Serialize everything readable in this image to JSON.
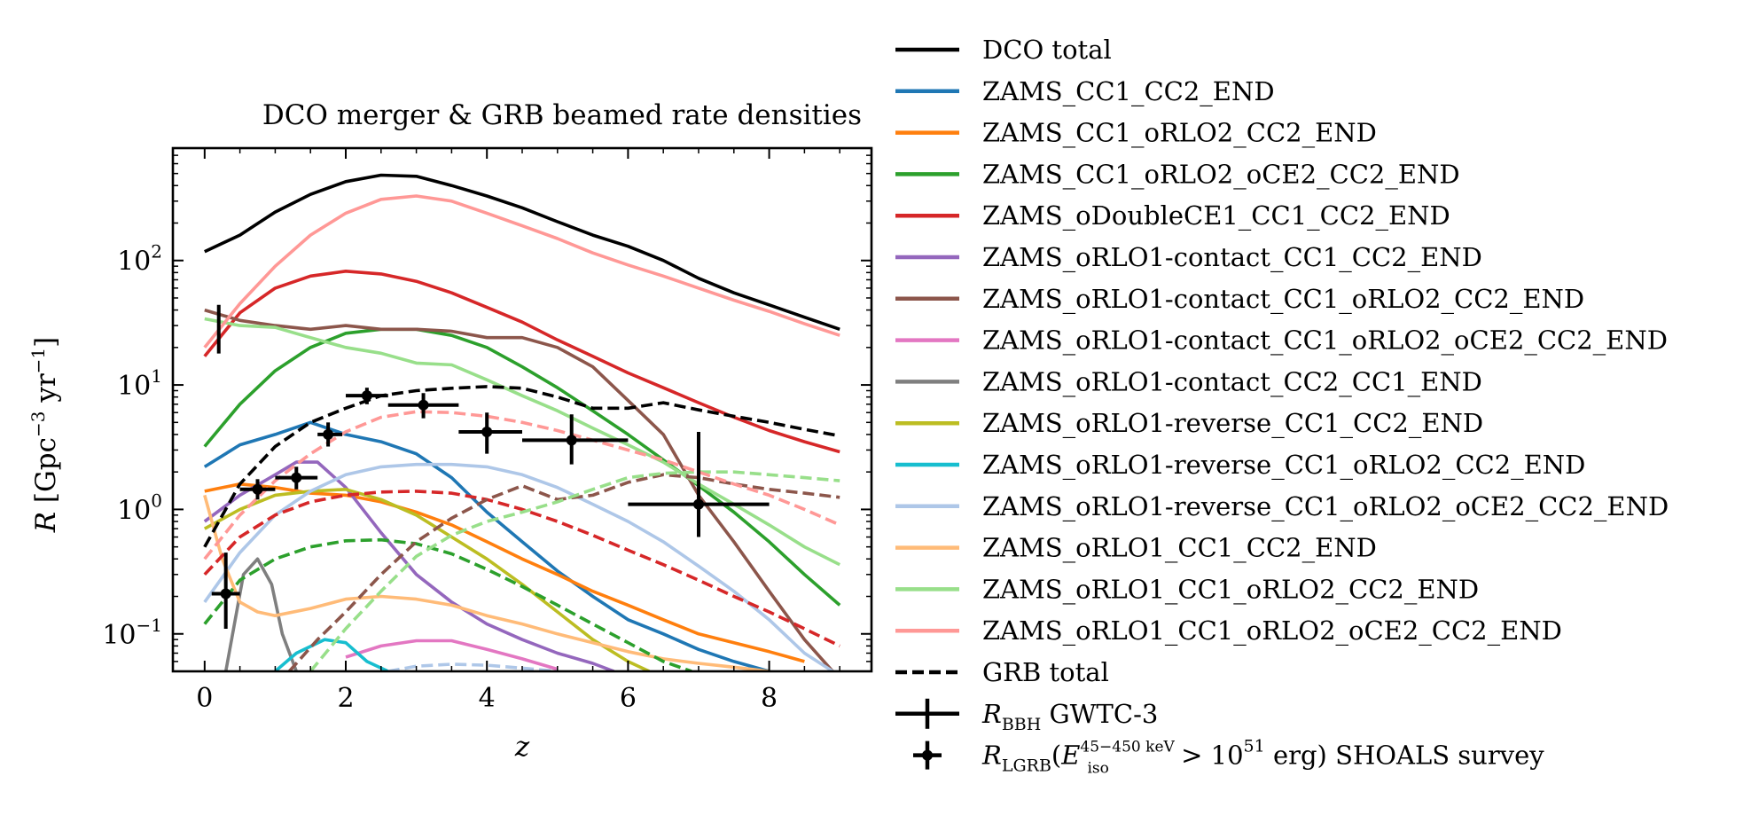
{
  "chart_data": {
    "type": "line",
    "title": "DCO merger & GRB beamed rate densities",
    "xlabel": "z",
    "ylabel": "R [Gpc⁻³ yr⁻¹]",
    "xlim": [
      -0.45,
      9.45
    ],
    "ylim": [
      0.05,
      800
    ],
    "yscale": "log",
    "grid": false,
    "legend_position": "outside-right",
    "x_ticks": [
      {
        "v": 0,
        "label": "0"
      },
      {
        "v": 2,
        "label": "2"
      },
      {
        "v": 4,
        "label": "4"
      },
      {
        "v": 6,
        "label": "6"
      },
      {
        "v": 8,
        "label": "8"
      }
    ],
    "y_ticks": [
      {
        "v": 0.1,
        "base": "10",
        "exp": "−1"
      },
      {
        "v": 1,
        "base": "10",
        "exp": "0"
      },
      {
        "v": 10,
        "base": "10",
        "exp": "1"
      },
      {
        "v": 100,
        "base": "10",
        "exp": "2"
      }
    ],
    "series": [
      {
        "name": "DCO total",
        "color": "#000000",
        "dash": false,
        "width": 3.6,
        "x": [
          0,
          0.5,
          1,
          1.5,
          2,
          2.5,
          3,
          3.5,
          4,
          4.5,
          5,
          5.5,
          6,
          6.5,
          7,
          7.5,
          8,
          8.5,
          9
        ],
        "y": [
          118,
          160,
          245,
          340,
          430,
          485,
          475,
          400,
          330,
          265,
          205,
          160,
          130,
          100,
          72,
          55,
          44,
          35,
          28
        ]
      },
      {
        "name": "ZAMS_CC1_CC2_END",
        "color": "#1f77b4",
        "dash": false,
        "width": 3.6,
        "x": [
          0,
          0.5,
          1,
          1.5,
          2,
          2.5,
          3,
          3.5,
          4,
          4.5,
          5,
          5.5,
          6,
          6.5,
          7,
          7.5,
          8
        ],
        "y": [
          2.2,
          3.3,
          4.0,
          5.0,
          4.0,
          3.5,
          2.8,
          1.8,
          0.95,
          0.55,
          0.32,
          0.2,
          0.13,
          0.1,
          0.075,
          0.06,
          0.05
        ]
      },
      {
        "name": "ZAMS_CC1_oRLO2_CC2_END",
        "color": "#ff7f0e",
        "dash": false,
        "width": 3.6,
        "x": [
          0,
          0.5,
          1,
          1.5,
          2,
          2.5,
          3,
          3.5,
          4,
          4.5,
          5,
          5.5,
          6,
          6.5,
          7,
          7.5,
          8,
          8.5
        ],
        "y": [
          1.4,
          1.6,
          1.5,
          1.35,
          1.3,
          1.15,
          0.95,
          0.75,
          0.55,
          0.4,
          0.3,
          0.22,
          0.17,
          0.13,
          0.1,
          0.085,
          0.072,
          0.06
        ]
      },
      {
        "name": "ZAMS_CC1_oRLO2_oCE2_CC2_END",
        "color": "#2ca02c",
        "dash": false,
        "width": 3.6,
        "x": [
          0,
          0.5,
          1,
          1.5,
          2,
          2.5,
          3,
          3.5,
          4,
          4.5,
          5,
          5.5,
          6,
          6.5,
          7,
          7.5,
          8,
          8.5,
          9
        ],
        "y": [
          3.2,
          7.0,
          13,
          20,
          26,
          28,
          28,
          25,
          20,
          14,
          9.5,
          6.2,
          4.0,
          2.5,
          1.55,
          0.95,
          0.55,
          0.3,
          0.17
        ]
      },
      {
        "name": "ZAMS_oDoubleCE1_CC1_CC2_END",
        "color": "#d62728",
        "dash": false,
        "width": 3.6,
        "x": [
          0,
          0.5,
          1,
          1.5,
          2,
          2.5,
          3,
          3.5,
          4,
          4.5,
          5,
          5.5,
          6,
          6.5,
          7,
          7.5,
          8,
          8.5,
          9
        ],
        "y": [
          17,
          38,
          60,
          75,
          82,
          78,
          68,
          55,
          42,
          32,
          23,
          17,
          12.5,
          9.5,
          7.2,
          5.5,
          4.3,
          3.5,
          2.9
        ]
      },
      {
        "name": "ZAMS_oRLO1-contact_CC1_CC2_END",
        "color": "#9467bd",
        "dash": false,
        "width": 3.6,
        "x": [
          0,
          0.5,
          1,
          1.3,
          1.6,
          2,
          2.5,
          3,
          3.5,
          4,
          4.5,
          5,
          5.5,
          5.8
        ],
        "y": [
          0.8,
          1.3,
          1.9,
          2.4,
          2.4,
          1.5,
          0.65,
          0.3,
          0.18,
          0.12,
          0.09,
          0.07,
          0.058,
          0.05
        ]
      },
      {
        "name": "ZAMS_oRLO1-contact_CC1_oRLO2_CC2_END",
        "color": "#8c564b",
        "dash": false,
        "width": 3.6,
        "x": [
          0,
          0.5,
          1,
          1.5,
          2,
          2.5,
          3,
          3.5,
          4,
          4.5,
          5,
          5.5,
          6,
          6.5,
          7,
          7.5,
          8,
          8.5,
          8.9
        ],
        "y": [
          40,
          33,
          30,
          28,
          30,
          28,
          28,
          27,
          24,
          24,
          20,
          14,
          7.5,
          4.0,
          1.3,
          0.55,
          0.22,
          0.09,
          0.05
        ]
      },
      {
        "name": "ZAMS_oRLO1-contact_CC1_oRLO2_oCE2_CC2_END",
        "color": "#e377c2",
        "dash": false,
        "width": 3.6,
        "x": [
          2,
          2.5,
          3,
          3.5,
          4,
          4.5,
          5
        ],
        "y": [
          0.065,
          0.08,
          0.088,
          0.088,
          0.075,
          0.063,
          0.052
        ]
      },
      {
        "name": "ZAMS_oRLO1-contact_CC2_CC1_END",
        "color": "#7f7f7f",
        "dash": false,
        "width": 3.6,
        "x": [
          0.3,
          0.55,
          0.75,
          0.95,
          1.1,
          1.3
        ],
        "y": [
          0.05,
          0.3,
          0.4,
          0.25,
          0.1,
          0.05
        ]
      },
      {
        "name": "ZAMS_oRLO1-reverse_CC1_CC2_END",
        "color": "#bcbd22",
        "dash": false,
        "width": 3.6,
        "x": [
          0,
          0.5,
          1,
          1.5,
          2,
          2.5,
          3,
          3.5,
          4,
          4.5,
          5,
          5.5,
          6,
          6.3
        ],
        "y": [
          0.7,
          1.0,
          1.3,
          1.4,
          1.45,
          1.2,
          0.9,
          0.6,
          0.4,
          0.25,
          0.15,
          0.09,
          0.06,
          0.05
        ]
      },
      {
        "name": "ZAMS_oRLO1-reverse_CC1_oRLO2_CC2_END",
        "color": "#17becf",
        "dash": false,
        "width": 3.6,
        "x": [
          1.0,
          1.3,
          1.7,
          2.0,
          2.3,
          2.6
        ],
        "y": [
          0.05,
          0.07,
          0.09,
          0.085,
          0.06,
          0.05
        ]
      },
      {
        "name": "ZAMS_oRLO1-reverse_CC1_oRLO2_oCE2_CC2_END",
        "color": "#aec7e8",
        "dash": false,
        "width": 3.6,
        "x": [
          0,
          0.5,
          1,
          1.5,
          2,
          2.5,
          3,
          3.5,
          4,
          4.5,
          5,
          5.5,
          6,
          6.5,
          7,
          7.5,
          8,
          8.5,
          8.9
        ],
        "y": [
          0.18,
          0.45,
          0.9,
          1.4,
          1.9,
          2.2,
          2.3,
          2.3,
          2.2,
          1.9,
          1.5,
          1.1,
          0.8,
          0.55,
          0.35,
          0.22,
          0.13,
          0.07,
          0.05
        ]
      },
      {
        "name": "ZAMS_oRLO1_CC1_CC2_END",
        "color": "#ffbb78",
        "dash": false,
        "width": 3.6,
        "x": [
          0,
          0.25,
          0.5,
          0.75,
          1,
          1.5,
          2,
          2.5,
          3,
          3.5,
          4,
          4.5,
          5,
          5.5,
          6,
          6.5,
          7,
          7.5,
          8
        ],
        "y": [
          1.3,
          0.4,
          0.18,
          0.15,
          0.14,
          0.16,
          0.19,
          0.2,
          0.19,
          0.17,
          0.14,
          0.12,
          0.1,
          0.085,
          0.072,
          0.063,
          0.058,
          0.054,
          0.05
        ]
      },
      {
        "name": "ZAMS_oRLO1_CC1_oRLO2_CC2_END",
        "color": "#98df8a",
        "dash": false,
        "width": 3.6,
        "x": [
          0,
          0.5,
          1,
          1.5,
          2,
          2.5,
          3,
          3.5,
          4,
          4.5,
          5,
          5.5,
          6,
          6.5,
          7,
          7.5,
          8,
          8.5,
          9
        ],
        "y": [
          34,
          30,
          29,
          24,
          20,
          18,
          15,
          14.5,
          11,
          8.2,
          6.2,
          4.5,
          3.3,
          2.4,
          1.6,
          1.1,
          0.75,
          0.5,
          0.36
        ]
      },
      {
        "name": "ZAMS_oRLO1_CC1_oRLO2_oCE2_CC2_END",
        "color": "#ff9896",
        "dash": false,
        "width": 3.6,
        "x": [
          0,
          0.5,
          1,
          1.5,
          2,
          2.5,
          3,
          3.5,
          4,
          4.5,
          5,
          5.5,
          6,
          6.5,
          7,
          7.5,
          8,
          8.5,
          9
        ],
        "y": [
          20,
          45,
          90,
          160,
          240,
          310,
          330,
          300,
          240,
          190,
          150,
          115,
          92,
          75,
          60,
          48,
          39,
          31,
          25
        ]
      },
      {
        "name": "",
        "color": "#d62728",
        "dash": true,
        "width": 3.6,
        "x": [
          0,
          0.5,
          1,
          1.5,
          2,
          2.5,
          3,
          3.5,
          4,
          4.5,
          5,
          5.5,
          6,
          6.5,
          7,
          7.5,
          8,
          8.5,
          9
        ],
        "y": [
          0.3,
          0.6,
          0.9,
          1.15,
          1.3,
          1.38,
          1.4,
          1.35,
          1.2,
          1.0,
          0.8,
          0.62,
          0.47,
          0.36,
          0.27,
          0.2,
          0.15,
          0.11,
          0.08
        ]
      },
      {
        "name": "",
        "color": "#2ca02c",
        "dash": true,
        "width": 3.6,
        "x": [
          0,
          0.5,
          1,
          1.5,
          2,
          2.5,
          3,
          3.5,
          4,
          4.5,
          5,
          5.5,
          6,
          6.5,
          6.9
        ],
        "y": [
          0.12,
          0.27,
          0.4,
          0.5,
          0.56,
          0.57,
          0.53,
          0.44,
          0.33,
          0.24,
          0.17,
          0.12,
          0.085,
          0.06,
          0.05
        ]
      },
      {
        "name": "",
        "color": "#8c564b",
        "dash": true,
        "width": 3.6,
        "x": [
          1.2,
          1.6,
          2,
          2.5,
          3,
          3.5,
          4,
          4.5,
          5,
          5.5,
          6,
          6.5,
          7,
          7.5,
          8,
          8.5,
          9
        ],
        "y": [
          0.05,
          0.09,
          0.15,
          0.3,
          0.55,
          0.85,
          1.2,
          1.55,
          1.2,
          1.3,
          1.65,
          1.9,
          1.8,
          1.6,
          1.45,
          1.35,
          1.25
        ]
      },
      {
        "name": "",
        "color": "#98df8a",
        "dash": true,
        "width": 3.6,
        "x": [
          1.5,
          2,
          2.5,
          3,
          3.5,
          4,
          4.5,
          5,
          5.5,
          6,
          6.5,
          7,
          7.5,
          8,
          8.5,
          9
        ],
        "y": [
          0.05,
          0.11,
          0.22,
          0.42,
          0.62,
          0.8,
          0.95,
          1.15,
          1.45,
          1.8,
          1.95,
          2.0,
          2.0,
          1.9,
          1.8,
          1.7
        ]
      },
      {
        "name": "",
        "color": "#ff9896",
        "dash": true,
        "width": 3.6,
        "x": [
          0,
          0.5,
          1,
          1.5,
          2,
          2.5,
          3,
          3.5,
          4,
          4.5,
          5,
          5.5,
          6,
          6.5,
          7,
          7.5,
          8,
          8.5,
          9
        ],
        "y": [
          0.4,
          0.9,
          1.7,
          2.8,
          4.2,
          5.5,
          6.1,
          6.0,
          5.6,
          5.0,
          4.3,
          3.6,
          3.0,
          2.5,
          2.0,
          1.6,
          1.3,
          1.0,
          0.75
        ]
      },
      {
        "name": "",
        "color": "#aec7e8",
        "dash": true,
        "width": 3.6,
        "x": [
          2.6,
          3,
          3.5,
          4,
          4.5,
          5
        ],
        "y": [
          0.05,
          0.055,
          0.057,
          0.056,
          0.053,
          0.05
        ]
      },
      {
        "name": "GRB total",
        "color": "#000000",
        "dash": true,
        "width": 3.6,
        "x": [
          0,
          0.5,
          1,
          1.5,
          2,
          2.5,
          3,
          3.5,
          4,
          4.5,
          5,
          5.5,
          6,
          6.5,
          7,
          7.5,
          8,
          8.5,
          9
        ],
        "y": [
          0.5,
          1.6,
          3.2,
          5.0,
          6.5,
          8.2,
          9.0,
          9.4,
          9.7,
          9.4,
          8.0,
          6.5,
          6.5,
          7.2,
          6.3,
          5.6,
          5.0,
          4.4,
          3.9
        ]
      }
    ],
    "errorbars": [
      {
        "name": "R_BBH GWTC-3",
        "color": "#000000",
        "kind": "bbh",
        "points": [
          {
            "x": 0.2,
            "y": 28,
            "xerr": 0,
            "ylo": 17.9,
            "yhi": 44
          }
        ]
      },
      {
        "name": "R_LGRB SHOALS survey",
        "color": "#000000",
        "kind": "lgrb",
        "points": [
          {
            "x": 0.3,
            "y": 0.21,
            "xlo": 0.1,
            "xhi": 0.5,
            "ylo": 0.11,
            "yhi": 0.45
          },
          {
            "x": 0.75,
            "y": 1.45,
            "xlo": 0.5,
            "xhi": 1.0,
            "ylo": 1.2,
            "yhi": 1.75
          },
          {
            "x": 1.3,
            "y": 1.8,
            "xlo": 1.0,
            "xhi": 1.6,
            "ylo": 1.45,
            "yhi": 2.2
          },
          {
            "x": 1.75,
            "y": 4.0,
            "xlo": 1.6,
            "xhi": 1.95,
            "ylo": 3.2,
            "yhi": 5.0
          },
          {
            "x": 2.3,
            "y": 8.2,
            "xlo": 2.0,
            "xhi": 2.6,
            "ylo": 7.0,
            "yhi": 9.5
          },
          {
            "x": 3.1,
            "y": 6.9,
            "xlo": 2.6,
            "xhi": 3.6,
            "ylo": 5.4,
            "yhi": 8.6
          },
          {
            "x": 4.0,
            "y": 4.2,
            "xlo": 3.6,
            "xhi": 4.5,
            "ylo": 2.8,
            "yhi": 6.0
          },
          {
            "x": 5.2,
            "y": 3.6,
            "xlo": 4.5,
            "xhi": 6.0,
            "ylo": 2.3,
            "yhi": 5.8
          },
          {
            "x": 7.0,
            "y": 1.1,
            "xlo": 6.0,
            "xhi": 8.0,
            "ylo": 0.6,
            "yhi": 4.2
          }
        ]
      }
    ],
    "legend": [
      {
        "label": "DCO total",
        "color": "#000000",
        "style": "solid"
      },
      {
        "label": "ZAMS_CC1_CC2_END",
        "color": "#1f77b4",
        "style": "solid"
      },
      {
        "label": "ZAMS_CC1_oRLO2_CC2_END",
        "color": "#ff7f0e",
        "style": "solid"
      },
      {
        "label": "ZAMS_CC1_oRLO2_oCE2_CC2_END",
        "color": "#2ca02c",
        "style": "solid"
      },
      {
        "label": "ZAMS_oDoubleCE1_CC1_CC2_END",
        "color": "#d62728",
        "style": "solid"
      },
      {
        "label": "ZAMS_oRLO1-contact_CC1_CC2_END",
        "color": "#9467bd",
        "style": "solid"
      },
      {
        "label": "ZAMS_oRLO1-contact_CC1_oRLO2_CC2_END",
        "color": "#8c564b",
        "style": "solid"
      },
      {
        "label": "ZAMS_oRLO1-contact_CC1_oRLO2_oCE2_CC2_END",
        "color": "#e377c2",
        "style": "solid"
      },
      {
        "label": "ZAMS_oRLO1-contact_CC2_CC1_END",
        "color": "#7f7f7f",
        "style": "solid"
      },
      {
        "label": "ZAMS_oRLO1-reverse_CC1_CC2_END",
        "color": "#bcbd22",
        "style": "solid"
      },
      {
        "label": "ZAMS_oRLO1-reverse_CC1_oRLO2_CC2_END",
        "color": "#17becf",
        "style": "solid"
      },
      {
        "label": "ZAMS_oRLO1-reverse_CC1_oRLO2_oCE2_CC2_END",
        "color": "#aec7e8",
        "style": "solid"
      },
      {
        "label": "ZAMS_oRLO1_CC1_CC2_END",
        "color": "#ffbb78",
        "style": "solid"
      },
      {
        "label": "ZAMS_oRLO1_CC1_oRLO2_CC2_END",
        "color": "#98df8a",
        "style": "solid"
      },
      {
        "label": "ZAMS_oRLO1_CC1_oRLO2_oCE2_CC2_END",
        "color": "#ff9896",
        "style": "solid"
      },
      {
        "label": "GRB total",
        "color": "#000000",
        "style": "dashed"
      },
      {
        "label": "R_BBH GWTC-3",
        "color": "#000000",
        "style": "errorbar-bbh"
      },
      {
        "label": "R_LGRB(E_iso^{45-450 keV} > 10^51 erg) SHOALS survey",
        "color": "#000000",
        "style": "errorbar-lgrb"
      }
    ]
  }
}
